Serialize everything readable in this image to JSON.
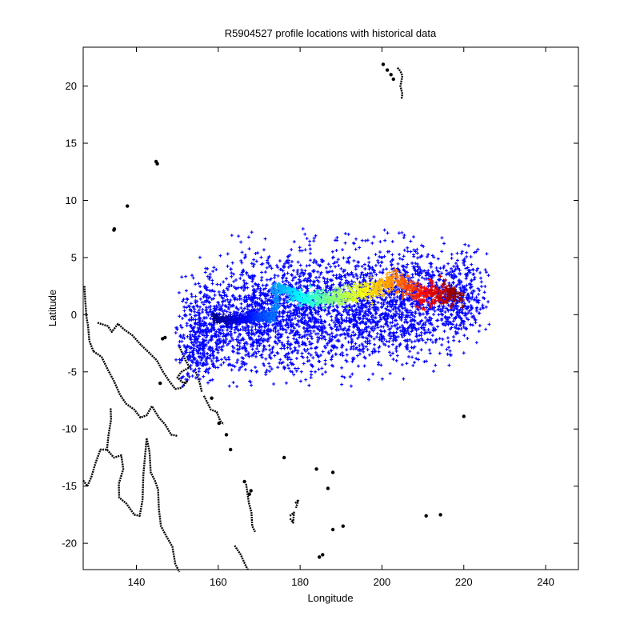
{
  "chart_data": {
    "type": "scatter",
    "title": "R5904527 profile locations with historical data",
    "xlabel": "Longitude",
    "ylabel": "Latitude",
    "xlim": [
      127,
      248
    ],
    "ylim": [
      -22.3,
      23.4
    ],
    "xticks": [
      140,
      160,
      180,
      200,
      220,
      240
    ],
    "yticks": [
      20,
      15,
      10,
      5,
      0,
      -5,
      -10,
      -15,
      -20
    ],
    "grid": false,
    "legend": "none",
    "series": [
      {
        "role": "historical",
        "color": "#0000ff",
        "marker": "plus",
        "blobs": [
          {
            "lon": 158,
            "lat": -0.8,
            "slon": 3.8,
            "slat": 2.1,
            "n": 500
          },
          {
            "lon": 170,
            "lat": -0.2,
            "slon": 4.5,
            "slat": 2.5,
            "n": 700
          },
          {
            "lon": 182,
            "lat": 0.2,
            "slon": 4.5,
            "slat": 2.6,
            "n": 700
          },
          {
            "lon": 194,
            "lat": 0.6,
            "slon": 4.5,
            "slat": 2.5,
            "n": 650
          },
          {
            "lon": 206,
            "lat": 1.0,
            "slon": 4.5,
            "slat": 2.4,
            "n": 650
          },
          {
            "lon": 218,
            "lat": 1.3,
            "slon": 3.8,
            "slat": 2.0,
            "n": 450
          },
          {
            "lon": 155,
            "lat": -3.5,
            "slon": 2.2,
            "slat": 1.3,
            "n": 120
          }
        ]
      },
      {
        "role": "float-track",
        "colormap": "jet",
        "marker": "plus",
        "path": [
          [
            159,
            -0.2
          ],
          [
            161,
            -0.4
          ],
          [
            163,
            -0.5
          ],
          [
            166,
            -0.3
          ],
          [
            169,
            -0.2
          ],
          [
            171,
            -0.1
          ],
          [
            173,
            -0.3
          ],
          [
            174,
            1.0
          ],
          [
            174,
            2.2
          ],
          [
            176,
            2.3
          ],
          [
            179,
            1.7
          ],
          [
            182,
            1.3
          ],
          [
            186,
            1.4
          ],
          [
            190,
            1.6
          ],
          [
            194,
            1.9
          ],
          [
            197,
            2.2
          ],
          [
            200,
            2.5
          ],
          [
            202,
            2.9
          ],
          [
            204,
            3.1
          ],
          [
            206,
            2.4
          ],
          [
            208,
            2.0
          ],
          [
            210,
            1.8
          ],
          [
            213,
            1.6
          ],
          [
            216,
            1.7
          ],
          [
            219,
            1.6
          ]
        ]
      },
      {
        "role": "coastline",
        "color": "#000000",
        "marker": "dot",
        "lines": [
          [
            [
              127.3,
              2.5
            ],
            [
              127.5,
              1.2
            ],
            [
              127.8,
              -0.2
            ],
            [
              128.2,
              -1.0
            ],
            [
              128.5,
              -2.3
            ],
            [
              129.5,
              -3.2
            ]
          ],
          [
            [
              130.5,
              -0.7
            ],
            [
              133,
              -1.0
            ],
            [
              134,
              -1.5
            ],
            [
              135.5,
              -0.8
            ],
            [
              137,
              -1.3
            ],
            [
              139,
              -1.8
            ],
            [
              141,
              -2.6
            ],
            [
              143,
              -3.3
            ],
            [
              145,
              -4.0
            ],
            [
              146.5,
              -5.0
            ],
            [
              148,
              -5.8
            ],
            [
              149.5,
              -6.5
            ],
            [
              151,
              -6.4
            ],
            [
              152.5,
              -5.8
            ]
          ],
          [
            [
              129.5,
              -3.2
            ],
            [
              131.5,
              -3.7
            ],
            [
              133,
              -4.8
            ],
            [
              134.5,
              -5.8
            ],
            [
              136,
              -7.0
            ],
            [
              137.5,
              -7.8
            ],
            [
              139.5,
              -8.3
            ],
            [
              141,
              -9.0
            ],
            [
              142.5,
              -8.8
            ],
            [
              143.8,
              -8.0
            ],
            [
              145.5,
              -9.0
            ],
            [
              147,
              -9.6
            ],
            [
              148.5,
              -10.5
            ],
            [
              150,
              -10.6
            ]
          ],
          [
            [
              133.7,
              -8.2
            ],
            [
              133.8,
              -9.2
            ],
            [
              133.2,
              -10.5
            ],
            [
              132.8,
              -11.8
            ]
          ],
          [
            [
              127,
              -14.5
            ],
            [
              128,
              -15
            ],
            [
              129,
              -14.2
            ],
            [
              130,
              -13
            ],
            [
              131.2,
              -11.8
            ],
            [
              132.8,
              -11.8
            ],
            [
              134.5,
              -12.5
            ],
            [
              136.3,
              -12.3
            ],
            [
              136.8,
              -13.5
            ],
            [
              135.7,
              -14.8
            ],
            [
              135.8,
              -16.0
            ],
            [
              137.5,
              -16.5
            ],
            [
              139.5,
              -17.5
            ],
            [
              140.8,
              -17.6
            ],
            [
              141.5,
              -16.2
            ],
            [
              141.7,
              -14.0
            ],
            [
              142.2,
              -12.0
            ],
            [
              142.5,
              -10.8
            ],
            [
              143.2,
              -12.0
            ],
            [
              143.5,
              -13.8
            ],
            [
              144.5,
              -14.5
            ],
            [
              145.3,
              -15.3
            ],
            [
              145.5,
              -17.0
            ],
            [
              146.0,
              -18.5
            ],
            [
              147.5,
              -19.5
            ],
            [
              148.8,
              -20.3
            ],
            [
              149.5,
              -21.8
            ],
            [
              150.5,
              -22.5
            ]
          ],
          [
            [
              150.5,
              -2.8
            ],
            [
              152,
              -4.0
            ],
            [
              153,
              -4.6
            ],
            [
              151,
              -5.0
            ],
            [
              150,
              -5.5
            ],
            [
              151.5,
              -6.0
            ],
            [
              152.5,
              -5.8
            ]
          ],
          [
            [
              154.5,
              -5.0
            ],
            [
              155.5,
              -6.0
            ],
            [
              156.0,
              -6.8
            ]
          ],
          [
            [
              156.5,
              -7.1
            ],
            [
              157.5,
              -7.8
            ],
            [
              158.2,
              -8.3
            ],
            [
              159.6,
              -8.5
            ],
            [
              160.5,
              -9.3
            ],
            [
              161.3,
              -9.6
            ]
          ],
          [
            [
              166.8,
              -14.8
            ],
            [
              167.2,
              -15.8
            ],
            [
              167.5,
              -16.5
            ],
            [
              168.1,
              -17.3
            ],
            [
              168.3,
              -18.5
            ],
            [
              169.0,
              -19.0
            ]
          ],
          [
            [
              164.0,
              -20.2
            ],
            [
              165.5,
              -21.0
            ],
            [
              166.5,
              -21.8
            ],
            [
              167.2,
              -22.3
            ]
          ],
          [
            [
              203.8,
              21.6
            ],
            [
              204.5,
              21.3
            ],
            [
              205.0,
              20.9
            ],
            [
              204.5,
              20.0
            ],
            [
              205.0,
              19.3
            ],
            [
              204.8,
              18.9
            ]
          ],
          [
            [
              177.5,
              -17.6
            ],
            [
              178.5,
              -17.3
            ],
            [
              178.3,
              -18.2
            ],
            [
              177.5,
              -17.8
            ]
          ],
          [
            [
              178.8,
              -16.5
            ],
            [
              179.6,
              -16.2
            ],
            [
              179.0,
              -16.9
            ]
          ]
        ],
        "points": [
          [
            144.8,
            13.4
          ],
          [
            145.1,
            13.2
          ],
          [
            137.8,
            9.5
          ],
          [
            134.5,
            7.4
          ],
          [
            134.6,
            7.5
          ],
          [
            145.8,
            -6.0
          ],
          [
            146.4,
            -2.1
          ],
          [
            147.0,
            -2.0
          ],
          [
            158.4,
            -7.3
          ],
          [
            160.2,
            -9.5
          ],
          [
            162.0,
            -10.5
          ],
          [
            163.0,
            -11.8
          ],
          [
            166.4,
            -14.6
          ],
          [
            167.6,
            -15.7
          ],
          [
            168.0,
            -15.4
          ],
          [
            176.1,
            -12.5
          ],
          [
            184.0,
            -13.5
          ],
          [
            188.0,
            -13.8
          ],
          [
            186.8,
            -15.2
          ],
          [
            190.5,
            -18.5
          ],
          [
            188.0,
            -18.8
          ],
          [
            185.5,
            -21.0
          ],
          [
            184.7,
            -21.2
          ],
          [
            210.8,
            -17.6
          ],
          [
            214.3,
            -17.5
          ],
          [
            220.0,
            -8.9
          ],
          [
            200.3,
            21.9
          ],
          [
            201.3,
            21.4
          ],
          [
            202.2,
            21.0
          ],
          [
            202.8,
            20.6
          ]
        ]
      }
    ]
  }
}
